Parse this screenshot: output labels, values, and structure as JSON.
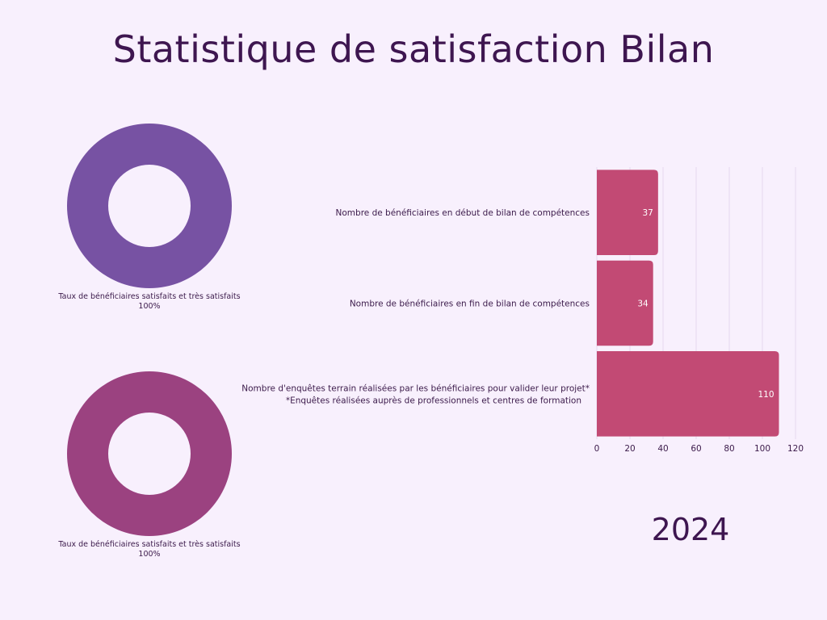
{
  "title": "Statistique de satisfaction Bilan",
  "year": "2024",
  "colors": {
    "background": "#f8f0fd",
    "donut_1": "#7752a3",
    "donut_2": "#9b4280",
    "bars": "#c24a74",
    "title": "#3e1650"
  },
  "chart_data": [
    {
      "type": "pie",
      "style": "donut",
      "categories": [
        "Taux de bénéficiaires satisfaits et très satisfaits"
      ],
      "values": [
        100
      ],
      "caption": "Taux de bénéficiaires satisfaits et très satisfaits",
      "value_label": "100%"
    },
    {
      "type": "pie",
      "style": "donut",
      "categories": [
        "Taux de bénéficiaires satisfaits et très satisfaits"
      ],
      "values": [
        100
      ],
      "caption": "Taux de bénéficiaires satisfaits et très satisfaits",
      "value_label": "100%"
    },
    {
      "type": "bar",
      "orientation": "horizontal",
      "categories": [
        [
          "Nombre de bénéficiaires en début de bilan de compétences"
        ],
        [
          "Nombre de bénéficiaires en fin de bilan de compétences"
        ],
        [
          "Nombre d'enquêtes terrain réalisées par les bénéficiaires pour valider leur projet*",
          "*Enquêtes réalisées auprès de professionnels et centres de formation"
        ]
      ],
      "values": [
        37,
        34,
        110
      ],
      "value_labels": [
        "37",
        "34",
        "110"
      ],
      "xlim": [
        0,
        120
      ],
      "xticks": [
        0,
        20,
        40,
        60,
        80,
        100,
        120
      ],
      "grid": true
    }
  ]
}
